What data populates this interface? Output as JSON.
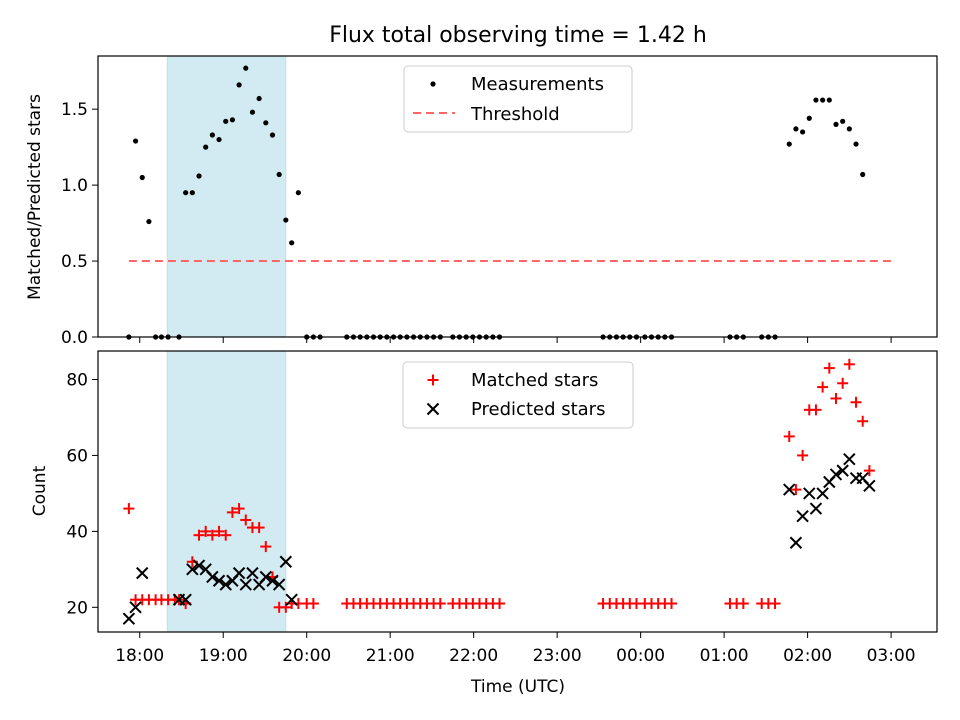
{
  "colors": {
    "band": "#add8e6",
    "threshold": "#ff6666",
    "matched": "#ff0000",
    "predicted": "#000000",
    "measurement": "#000000"
  },
  "chart_data": [
    {
      "type": "scatter",
      "title": "Flux total observing time = 1.42 h",
      "xlabel": "",
      "ylabel": "Matched/Predicted stars",
      "xlim": [
        -0.5,
        9.55
      ],
      "ylim": [
        0,
        1.85
      ],
      "yticks": [
        0.0,
        0.5,
        1.0,
        1.5
      ],
      "ytick_labels": [
        "0.0",
        "0.5",
        "1.0",
        "1.5"
      ],
      "highlight_band": [
        0.33,
        1.75
      ],
      "legend": [
        "Measurements",
        "Threshold"
      ],
      "threshold": {
        "name": "Threshold",
        "value": 0.5,
        "x": [
          -0.13,
          9.05
        ]
      },
      "series": [
        {
          "name": "Measurements",
          "points": [
            [
              -0.13,
              0
            ],
            [
              -0.05,
              1.29
            ],
            [
              0.03,
              1.05
            ],
            [
              0.11,
              0.76
            ],
            [
              0.19,
              0
            ],
            [
              0.26,
              0
            ],
            [
              0.34,
              0
            ],
            [
              0.47,
              0
            ],
            [
              0.55,
              0.95
            ],
            [
              0.63,
              0.95
            ],
            [
              0.71,
              1.06
            ],
            [
              0.79,
              1.25
            ],
            [
              0.87,
              1.33
            ],
            [
              0.95,
              1.3
            ],
            [
              1.03,
              1.42
            ],
            [
              1.11,
              1.43
            ],
            [
              1.19,
              1.66
            ],
            [
              1.27,
              1.77
            ],
            [
              1.35,
              1.48
            ],
            [
              1.43,
              1.57
            ],
            [
              1.51,
              1.41
            ],
            [
              1.59,
              1.33
            ],
            [
              1.67,
              1.07
            ],
            [
              1.75,
              0.77
            ],
            [
              1.82,
              0.62
            ],
            [
              1.9,
              0.95
            ],
            [
              2.0,
              0
            ],
            [
              2.08,
              0
            ],
            [
              2.16,
              0
            ],
            [
              2.48,
              0
            ],
            [
              2.56,
              0
            ],
            [
              2.64,
              0
            ],
            [
              2.72,
              0
            ],
            [
              2.8,
              0
            ],
            [
              2.88,
              0
            ],
            [
              2.96,
              0
            ],
            [
              3.04,
              0
            ],
            [
              3.12,
              0
            ],
            [
              3.2,
              0
            ],
            [
              3.28,
              0
            ],
            [
              3.36,
              0
            ],
            [
              3.44,
              0
            ],
            [
              3.52,
              0
            ],
            [
              3.6,
              0
            ],
            [
              3.75,
              0
            ],
            [
              3.83,
              0
            ],
            [
              3.91,
              0
            ],
            [
              3.99,
              0
            ],
            [
              4.07,
              0
            ],
            [
              4.15,
              0
            ],
            [
              4.23,
              0
            ],
            [
              4.31,
              0
            ],
            [
              5.55,
              0
            ],
            [
              5.63,
              0
            ],
            [
              5.71,
              0
            ],
            [
              5.79,
              0
            ],
            [
              5.87,
              0
            ],
            [
              5.95,
              0
            ],
            [
              6.05,
              0
            ],
            [
              6.13,
              0
            ],
            [
              6.21,
              0
            ],
            [
              6.29,
              0
            ],
            [
              6.37,
              0
            ],
            [
              7.07,
              0
            ],
            [
              7.15,
              0
            ],
            [
              7.23,
              0
            ],
            [
              7.45,
              0
            ],
            [
              7.53,
              0
            ],
            [
              7.61,
              0
            ],
            [
              7.78,
              1.27
            ],
            [
              7.86,
              1.37
            ],
            [
              7.94,
              1.35
            ],
            [
              8.02,
              1.44
            ],
            [
              8.1,
              1.56
            ],
            [
              8.18,
              1.56
            ],
            [
              8.26,
              1.56
            ],
            [
              8.34,
              1.4
            ],
            [
              8.42,
              1.42
            ],
            [
              8.5,
              1.37
            ],
            [
              8.58,
              1.27
            ],
            [
              8.66,
              1.07
            ]
          ]
        }
      ]
    },
    {
      "type": "scatter",
      "title": "",
      "xlabel": "Time (UTC)",
      "ylabel": "Count",
      "xlim": [
        -0.5,
        9.55
      ],
      "ylim": [
        13.5,
        87.5
      ],
      "yticks": [
        20,
        40,
        60,
        80
      ],
      "ytick_labels": [
        "20",
        "40",
        "60",
        "80"
      ],
      "xticks": [
        0,
        1,
        2,
        3,
        4,
        5,
        6,
        7,
        8,
        9
      ],
      "xtick_labels": [
        "18:00",
        "19:00",
        "20:00",
        "21:00",
        "22:00",
        "23:00",
        "00:00",
        "01:00",
        "02:00",
        "03:00"
      ],
      "highlight_band": [
        0.33,
        1.75
      ],
      "legend": [
        "Matched stars",
        "Predicted stars"
      ],
      "series": [
        {
          "name": "Matched stars",
          "points": [
            [
              -0.13,
              46
            ],
            [
              -0.05,
              22
            ],
            [
              0.03,
              22
            ],
            [
              0.11,
              22
            ],
            [
              0.19,
              22
            ],
            [
              0.26,
              22
            ],
            [
              0.34,
              22
            ],
            [
              0.42,
              22
            ],
            [
              0.47,
              22
            ],
            [
              0.55,
              21
            ],
            [
              0.63,
              32
            ],
            [
              0.71,
              39
            ],
            [
              0.79,
              40
            ],
            [
              0.87,
              39
            ],
            [
              0.95,
              40
            ],
            [
              1.03,
              39
            ],
            [
              1.11,
              45
            ],
            [
              1.19,
              46
            ],
            [
              1.27,
              43
            ],
            [
              1.35,
              41
            ],
            [
              1.43,
              41
            ],
            [
              1.51,
              36
            ],
            [
              1.59,
              28
            ],
            [
              1.67,
              20
            ],
            [
              1.75,
              20
            ],
            [
              1.82,
              21
            ],
            [
              1.9,
              21
            ],
            [
              2.0,
              21
            ],
            [
              2.08,
              21
            ],
            [
              2.48,
              21
            ],
            [
              2.56,
              21
            ],
            [
              2.64,
              21
            ],
            [
              2.72,
              21
            ],
            [
              2.8,
              21
            ],
            [
              2.88,
              21
            ],
            [
              2.96,
              21
            ],
            [
              3.04,
              21
            ],
            [
              3.12,
              21
            ],
            [
              3.2,
              21
            ],
            [
              3.28,
              21
            ],
            [
              3.36,
              21
            ],
            [
              3.44,
              21
            ],
            [
              3.52,
              21
            ],
            [
              3.6,
              21
            ],
            [
              3.75,
              21
            ],
            [
              3.83,
              21
            ],
            [
              3.91,
              21
            ],
            [
              3.99,
              21
            ],
            [
              4.07,
              21
            ],
            [
              4.15,
              21
            ],
            [
              4.23,
              21
            ],
            [
              4.31,
              21
            ],
            [
              5.55,
              21
            ],
            [
              5.63,
              21
            ],
            [
              5.71,
              21
            ],
            [
              5.79,
              21
            ],
            [
              5.87,
              21
            ],
            [
              5.95,
              21
            ],
            [
              6.05,
              21
            ],
            [
              6.13,
              21
            ],
            [
              6.21,
              21
            ],
            [
              6.29,
              21
            ],
            [
              6.37,
              21
            ],
            [
              7.07,
              21
            ],
            [
              7.15,
              21
            ],
            [
              7.23,
              21
            ],
            [
              7.45,
              21
            ],
            [
              7.53,
              21
            ],
            [
              7.61,
              21
            ],
            [
              7.78,
              65
            ],
            [
              7.86,
              51
            ],
            [
              7.94,
              60
            ],
            [
              8.02,
              72
            ],
            [
              8.1,
              72
            ],
            [
              8.18,
              78
            ],
            [
              8.26,
              83
            ],
            [
              8.34,
              75
            ],
            [
              8.42,
              79
            ],
            [
              8.5,
              84
            ],
            [
              8.58,
              74
            ],
            [
              8.66,
              69
            ],
            [
              8.74,
              56
            ]
          ]
        },
        {
          "name": "Predicted stars",
          "points": [
            [
              -0.13,
              17
            ],
            [
              -0.05,
              20
            ],
            [
              0.03,
              29
            ],
            [
              0.47,
              22
            ],
            [
              0.55,
              22
            ],
            [
              0.63,
              30
            ],
            [
              0.71,
              31
            ],
            [
              0.79,
              30
            ],
            [
              0.87,
              28
            ],
            [
              0.95,
              27
            ],
            [
              1.03,
              26
            ],
            [
              1.11,
              27
            ],
            [
              1.19,
              29
            ],
            [
              1.27,
              26
            ],
            [
              1.35,
              29
            ],
            [
              1.43,
              26
            ],
            [
              1.51,
              28
            ],
            [
              1.59,
              27
            ],
            [
              1.67,
              26
            ],
            [
              1.75,
              32
            ],
            [
              1.82,
              22
            ],
            [
              7.78,
              51
            ],
            [
              7.86,
              37
            ],
            [
              7.94,
              44
            ],
            [
              8.02,
              50
            ],
            [
              8.1,
              46
            ],
            [
              8.18,
              50
            ],
            [
              8.26,
              53
            ],
            [
              8.34,
              55
            ],
            [
              8.42,
              56
            ],
            [
              8.5,
              59
            ],
            [
              8.58,
              54
            ],
            [
              8.66,
              54
            ],
            [
              8.74,
              52
            ]
          ]
        }
      ]
    }
  ]
}
